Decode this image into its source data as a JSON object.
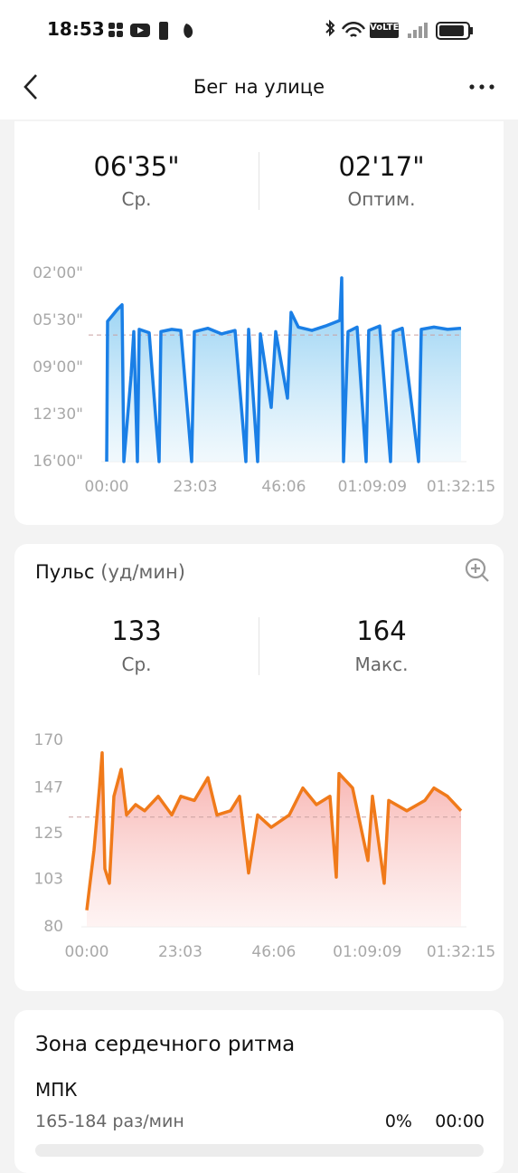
{
  "status_bar": {
    "time": "18:53",
    "network": "VoLTE"
  },
  "header": {
    "title": "Бег на улице"
  },
  "pace": {
    "average": {
      "value": "06'35\"",
      "label": "Ср."
    },
    "best": {
      "value": "02'17\"",
      "label": "Оптим."
    },
    "chart_data": {
      "type": "area",
      "color": "#1a7fe6",
      "average_line": 395,
      "x": [
        0,
        14,
        85,
        170,
        240,
        268,
        381,
        424,
        480,
        508,
        664,
        819,
        847,
        1017,
        1158,
        1327,
        1370,
        1581,
        1793,
        2005,
        2174,
        2217,
        2358,
        2400,
        2570,
        2640,
        2824,
        2880,
        2993,
        3205,
        3417,
        3643,
        3671,
        3699,
        3770,
        3911,
        4052,
        4094,
        4264,
        4433,
        4476,
        4617,
        4871,
        4914,
        5112,
        5324,
        5535
      ],
      "values": [
        960,
        334,
        310,
        280,
        260,
        960,
        576,
        380,
        960,
        370,
        385,
        960,
        380,
        370,
        375,
        960,
        380,
        365,
        390,
        375,
        960,
        370,
        960,
        390,
        718,
        380,
        677,
        294,
        360,
        375,
        355,
        330,
        140,
        960,
        380,
        360,
        960,
        375,
        355,
        960,
        380,
        365,
        960,
        370,
        360,
        370,
        365
      ],
      "xlim": [
        0,
        5535
      ],
      "xticks": [
        {
          "value": 0,
          "label": "00:00"
        },
        {
          "value": 1383,
          "label": "23:03"
        },
        {
          "value": 2766,
          "label": "46:06"
        },
        {
          "value": 4149,
          "label": "01:09:09"
        },
        {
          "value": 5535,
          "label": "01:32:15"
        }
      ],
      "ylim": [
        960,
        120
      ],
      "yticks": [
        {
          "value": 120,
          "label": "02'00\""
        },
        {
          "value": 330,
          "label": "05'30\""
        },
        {
          "value": 540,
          "label": "09'00\""
        },
        {
          "value": 750,
          "label": "12'30\""
        },
        {
          "value": 960,
          "label": "16'00\""
        }
      ]
    }
  },
  "heart_rate": {
    "title": "Пульс",
    "unit": "(уд/мин)",
    "average": {
      "value": 133,
      "label": "Ср."
    },
    "max": {
      "value": 164,
      "label": "Макс."
    },
    "chart_data": {
      "type": "area",
      "color": "#f07a1a",
      "average_line": 133,
      "x": [
        0,
        40,
        107,
        187,
        227,
        267,
        334,
        401,
        508,
        588,
        722,
        856,
        1056,
        1257,
        1390,
        1591,
        1791,
        1925,
        2126,
        2260,
        2393,
        2527,
        2727,
        2995,
        3195,
        3396,
        3596,
        3690,
        3730,
        3931,
        4158,
        4225,
        4398,
        4466,
        4733,
        5000,
        5134,
        5335,
        5535
      ],
      "values": [
        88,
        99,
        117,
        147,
        164,
        108,
        101,
        143,
        156,
        134,
        139,
        136,
        143,
        134,
        143,
        141,
        152,
        134,
        136,
        143,
        106,
        134,
        128,
        134,
        147,
        139,
        143,
        104,
        154,
        147,
        112,
        143,
        101,
        141,
        136,
        141,
        147,
        143,
        136
      ],
      "xlim": [
        0,
        5535
      ],
      "xticks": [
        {
          "value": 0,
          "label": "00:00"
        },
        {
          "value": 1383,
          "label": "23:03"
        },
        {
          "value": 2766,
          "label": "46:06"
        },
        {
          "value": 4149,
          "label": "01:09:09"
        },
        {
          "value": 5535,
          "label": "01:32:15"
        }
      ],
      "ylim": [
        80,
        170
      ],
      "yticks": [
        80,
        103,
        125,
        147,
        170
      ]
    }
  },
  "zones": {
    "title": "Зона сердечного ритма",
    "items": [
      {
        "name": "МПК",
        "range": "165-184 раз/мин",
        "share": 0,
        "share_label": "0%",
        "time": "00:00"
      }
    ]
  }
}
